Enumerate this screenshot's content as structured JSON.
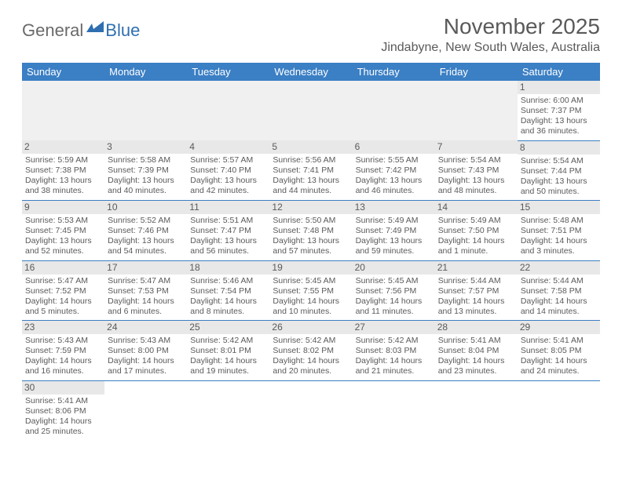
{
  "logo": {
    "text1": "General",
    "text2": "Blue"
  },
  "title": "November 2025",
  "location": "Jindabyne, New South Wales, Australia",
  "colors": {
    "header_bg": "#3b7fc4",
    "header_text": "#ffffff",
    "daynum_bg": "#e8e8e8",
    "row_divider": "#3b7fc4",
    "body_text": "#5a5a5a",
    "logo_gray": "#6a6a6a",
    "logo_blue": "#2f6fb0"
  },
  "weekdays": [
    "Sunday",
    "Monday",
    "Tuesday",
    "Wednesday",
    "Thursday",
    "Friday",
    "Saturday"
  ],
  "weeks": [
    [
      null,
      null,
      null,
      null,
      null,
      null,
      {
        "n": "1",
        "sr": "Sunrise: 6:00 AM",
        "ss": "Sunset: 7:37 PM",
        "d1": "Daylight: 13 hours",
        "d2": "and 36 minutes."
      }
    ],
    [
      {
        "n": "2",
        "sr": "Sunrise: 5:59 AM",
        "ss": "Sunset: 7:38 PM",
        "d1": "Daylight: 13 hours",
        "d2": "and 38 minutes."
      },
      {
        "n": "3",
        "sr": "Sunrise: 5:58 AM",
        "ss": "Sunset: 7:39 PM",
        "d1": "Daylight: 13 hours",
        "d2": "and 40 minutes."
      },
      {
        "n": "4",
        "sr": "Sunrise: 5:57 AM",
        "ss": "Sunset: 7:40 PM",
        "d1": "Daylight: 13 hours",
        "d2": "and 42 minutes."
      },
      {
        "n": "5",
        "sr": "Sunrise: 5:56 AM",
        "ss": "Sunset: 7:41 PM",
        "d1": "Daylight: 13 hours",
        "d2": "and 44 minutes."
      },
      {
        "n": "6",
        "sr": "Sunrise: 5:55 AM",
        "ss": "Sunset: 7:42 PM",
        "d1": "Daylight: 13 hours",
        "d2": "and 46 minutes."
      },
      {
        "n": "7",
        "sr": "Sunrise: 5:54 AM",
        "ss": "Sunset: 7:43 PM",
        "d1": "Daylight: 13 hours",
        "d2": "and 48 minutes."
      },
      {
        "n": "8",
        "sr": "Sunrise: 5:54 AM",
        "ss": "Sunset: 7:44 PM",
        "d1": "Daylight: 13 hours",
        "d2": "and 50 minutes."
      }
    ],
    [
      {
        "n": "9",
        "sr": "Sunrise: 5:53 AM",
        "ss": "Sunset: 7:45 PM",
        "d1": "Daylight: 13 hours",
        "d2": "and 52 minutes."
      },
      {
        "n": "10",
        "sr": "Sunrise: 5:52 AM",
        "ss": "Sunset: 7:46 PM",
        "d1": "Daylight: 13 hours",
        "d2": "and 54 minutes."
      },
      {
        "n": "11",
        "sr": "Sunrise: 5:51 AM",
        "ss": "Sunset: 7:47 PM",
        "d1": "Daylight: 13 hours",
        "d2": "and 56 minutes."
      },
      {
        "n": "12",
        "sr": "Sunrise: 5:50 AM",
        "ss": "Sunset: 7:48 PM",
        "d1": "Daylight: 13 hours",
        "d2": "and 57 minutes."
      },
      {
        "n": "13",
        "sr": "Sunrise: 5:49 AM",
        "ss": "Sunset: 7:49 PM",
        "d1": "Daylight: 13 hours",
        "d2": "and 59 minutes."
      },
      {
        "n": "14",
        "sr": "Sunrise: 5:49 AM",
        "ss": "Sunset: 7:50 PM",
        "d1": "Daylight: 14 hours",
        "d2": "and 1 minute."
      },
      {
        "n": "15",
        "sr": "Sunrise: 5:48 AM",
        "ss": "Sunset: 7:51 PM",
        "d1": "Daylight: 14 hours",
        "d2": "and 3 minutes."
      }
    ],
    [
      {
        "n": "16",
        "sr": "Sunrise: 5:47 AM",
        "ss": "Sunset: 7:52 PM",
        "d1": "Daylight: 14 hours",
        "d2": "and 5 minutes."
      },
      {
        "n": "17",
        "sr": "Sunrise: 5:47 AM",
        "ss": "Sunset: 7:53 PM",
        "d1": "Daylight: 14 hours",
        "d2": "and 6 minutes."
      },
      {
        "n": "18",
        "sr": "Sunrise: 5:46 AM",
        "ss": "Sunset: 7:54 PM",
        "d1": "Daylight: 14 hours",
        "d2": "and 8 minutes."
      },
      {
        "n": "19",
        "sr": "Sunrise: 5:45 AM",
        "ss": "Sunset: 7:55 PM",
        "d1": "Daylight: 14 hours",
        "d2": "and 10 minutes."
      },
      {
        "n": "20",
        "sr": "Sunrise: 5:45 AM",
        "ss": "Sunset: 7:56 PM",
        "d1": "Daylight: 14 hours",
        "d2": "and 11 minutes."
      },
      {
        "n": "21",
        "sr": "Sunrise: 5:44 AM",
        "ss": "Sunset: 7:57 PM",
        "d1": "Daylight: 14 hours",
        "d2": "and 13 minutes."
      },
      {
        "n": "22",
        "sr": "Sunrise: 5:44 AM",
        "ss": "Sunset: 7:58 PM",
        "d1": "Daylight: 14 hours",
        "d2": "and 14 minutes."
      }
    ],
    [
      {
        "n": "23",
        "sr": "Sunrise: 5:43 AM",
        "ss": "Sunset: 7:59 PM",
        "d1": "Daylight: 14 hours",
        "d2": "and 16 minutes."
      },
      {
        "n": "24",
        "sr": "Sunrise: 5:43 AM",
        "ss": "Sunset: 8:00 PM",
        "d1": "Daylight: 14 hours",
        "d2": "and 17 minutes."
      },
      {
        "n": "25",
        "sr": "Sunrise: 5:42 AM",
        "ss": "Sunset: 8:01 PM",
        "d1": "Daylight: 14 hours",
        "d2": "and 19 minutes."
      },
      {
        "n": "26",
        "sr": "Sunrise: 5:42 AM",
        "ss": "Sunset: 8:02 PM",
        "d1": "Daylight: 14 hours",
        "d2": "and 20 minutes."
      },
      {
        "n": "27",
        "sr": "Sunrise: 5:42 AM",
        "ss": "Sunset: 8:03 PM",
        "d1": "Daylight: 14 hours",
        "d2": "and 21 minutes."
      },
      {
        "n": "28",
        "sr": "Sunrise: 5:41 AM",
        "ss": "Sunset: 8:04 PM",
        "d1": "Daylight: 14 hours",
        "d2": "and 23 minutes."
      },
      {
        "n": "29",
        "sr": "Sunrise: 5:41 AM",
        "ss": "Sunset: 8:05 PM",
        "d1": "Daylight: 14 hours",
        "d2": "and 24 minutes."
      }
    ],
    [
      {
        "n": "30",
        "sr": "Sunrise: 5:41 AM",
        "ss": "Sunset: 8:06 PM",
        "d1": "Daylight: 14 hours",
        "d2": "and 25 minutes."
      },
      null,
      null,
      null,
      null,
      null,
      null
    ]
  ]
}
